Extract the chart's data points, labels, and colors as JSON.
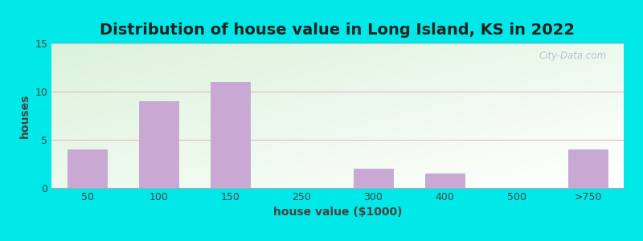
{
  "title": "Distribution of house value in Long Island, KS in 2022",
  "xlabel": "house value ($1000)",
  "ylabel": "houses",
  "categories": [
    "50",
    "100",
    "150",
    "250",
    "300",
    "400",
    "500",
    ">750"
  ],
  "values": [
    4,
    9,
    11,
    0,
    2,
    1.5,
    0,
    4
  ],
  "bar_color": "#c9a8d4",
  "bar_edgecolor": "#b8a0cc",
  "ylim": [
    0,
    15
  ],
  "yticks": [
    0,
    5,
    10,
    15
  ],
  "bg_outer": "#00e8e8",
  "title_fontsize": 14,
  "axis_fontsize": 10,
  "tick_fontsize": 9,
  "bar_width": 0.55
}
